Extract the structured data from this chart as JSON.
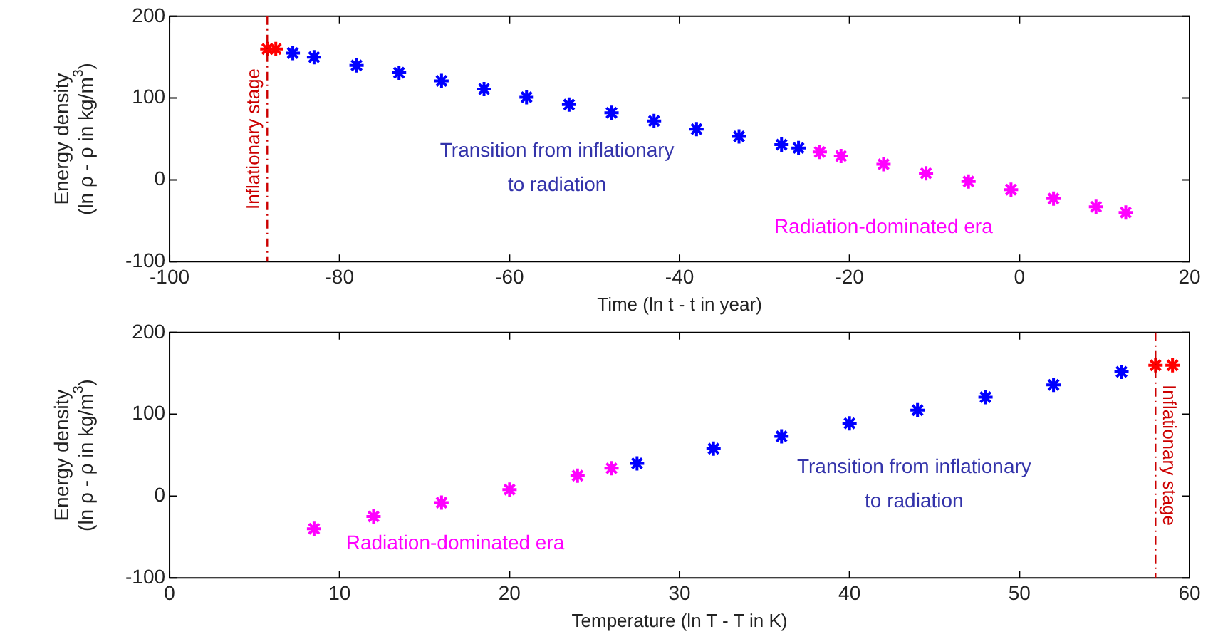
{
  "chart_data": [
    {
      "type": "scatter",
      "marker": "cross",
      "grid": false,
      "legend": false,
      "xlabel": "Time (ln t - t in year)",
      "ylabel": "Energy density\n(ln ρ - ρ in kg/m$^{3}$)",
      "xlim": [
        -100,
        20
      ],
      "xticks": [
        -100,
        -80,
        -60,
        -40,
        -20,
        0,
        20
      ],
      "ylim": [
        -100,
        200
      ],
      "yticks": [
        -100,
        0,
        100,
        200
      ],
      "series": [
        {
          "color": "#ff0000",
          "x": [
            -88.5,
            -87.5
          ],
          "values": [
            160,
            160
          ]
        },
        {
          "color": "#0000ff",
          "x": [
            -85.5,
            -83,
            -78,
            -73,
            -68,
            -63,
            -58,
            -53,
            -48,
            -43,
            -38,
            -33,
            -28,
            -26
          ],
          "values": [
            155,
            150,
            140,
            131,
            121,
            111,
            101,
            92,
            82,
            72,
            62,
            53,
            43,
            39
          ]
        },
        {
          "color": "#ff00ff",
          "x": [
            -23.5,
            -21,
            -16,
            -11,
            -6,
            -1,
            4,
            9,
            12.5
          ],
          "values": [
            34,
            29,
            19,
            8,
            -2,
            -12,
            -23,
            -33,
            -40
          ]
        }
      ],
      "ref_lines": [
        {
          "axis": "x",
          "value": -88.5,
          "label": "Inflationary stage",
          "color": "#cc0000",
          "line_style": "dashed"
        }
      ],
      "annotations": [
        "Transition from inflationary\nto radiation",
        "Radiation-dominated era"
      ]
    },
    {
      "type": "scatter",
      "marker": "cross",
      "grid": false,
      "legend": false,
      "xlabel": "Temperature (ln T - T in K)",
      "ylabel": "Energy density\n(ln ρ - ρ in kg/m$^{3}$)",
      "xlim": [
        0,
        60
      ],
      "xticks": [
        0,
        10,
        20,
        30,
        40,
        50,
        60
      ],
      "ylim": [
        -100,
        200
      ],
      "yticks": [
        -100,
        0,
        100,
        200
      ],
      "series": [
        {
          "color": "#ff0000",
          "x": [
            58,
            59
          ],
          "values": [
            160,
            160
          ]
        },
        {
          "color": "#0000ff",
          "x": [
            27.5,
            32,
            36,
            40,
            44,
            48,
            52,
            56
          ],
          "values": [
            40,
            58,
            73,
            89,
            105,
            121,
            136,
            152
          ]
        },
        {
          "color": "#ff00ff",
          "x": [
            8.5,
            12,
            16,
            20,
            24,
            26
          ],
          "values": [
            -40,
            -25,
            -8,
            8,
            25,
            34
          ]
        }
      ],
      "ref_lines": [
        {
          "axis": "x",
          "value": 58,
          "label": "Inflationary stage",
          "color": "#cc0000",
          "line_style": "dashed"
        }
      ],
      "annotations": [
        "Transition from inflationary\nto radiation",
        "Radiation-dominated era"
      ]
    }
  ]
}
